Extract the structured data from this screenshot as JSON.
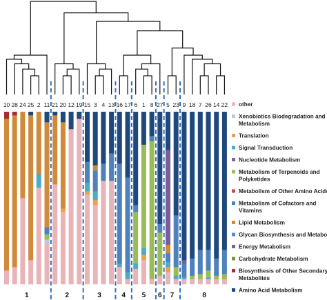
{
  "chart_data": {
    "type": "bar",
    "stacked": true,
    "title": "",
    "xlabel": "",
    "ylabel": "",
    "ylim": [
      0,
      100
    ],
    "legend_position": "right",
    "categories": [
      "10",
      "28",
      "24",
      "25",
      "2",
      "11",
      "21",
      "20",
      "12",
      "19",
      "15",
      "3",
      "4",
      "13",
      "16",
      "17",
      "6",
      "1",
      "8",
      "27",
      "5",
      "23",
      "9",
      "18",
      "7",
      "26",
      "14",
      "22"
    ],
    "groups": [
      {
        "label": "1",
        "members": [
          "10",
          "28",
          "24",
          "25",
          "2",
          "11"
        ]
      },
      {
        "label": "2",
        "members": [
          "21",
          "20",
          "12",
          "19"
        ]
      },
      {
        "label": "3",
        "members": [
          "15",
          "3",
          "4",
          "13"
        ]
      },
      {
        "label": "4",
        "members": [
          "16",
          "17"
        ]
      },
      {
        "label": "5",
        "members": [
          "6",
          "1",
          "8"
        ]
      },
      {
        "label": "6",
        "members": [
          "27"
        ]
      },
      {
        "label": "7",
        "members": [
          "5",
          "23"
        ]
      },
      {
        "label": "8",
        "members": [
          "9",
          "18",
          "7",
          "26",
          "14",
          "22"
        ]
      }
    ],
    "series": [
      {
        "name": "other",
        "color": "#e8b4b8",
        "values": [
          8,
          10,
          50,
          14,
          56,
          24,
          58,
          42,
          90,
          96,
          52,
          46,
          60,
          60,
          10,
          3,
          9,
          14,
          3,
          5,
          7,
          3,
          3,
          3,
          3,
          3,
          3,
          3
        ]
      },
      {
        "name": "Xenobiotics Biodegradation and Metabolism",
        "color": "#b7c8e4",
        "values": [
          0,
          0,
          0,
          0,
          0,
          2,
          0,
          0,
          0,
          0,
          0,
          0,
          0,
          0,
          0,
          0,
          0,
          0,
          0,
          0,
          0,
          0,
          0,
          0,
          0,
          0,
          0,
          0
        ]
      },
      {
        "name": "Translation",
        "color": "#f0a04c",
        "values": [
          0,
          0,
          0,
          0,
          0,
          0,
          0,
          2,
          0,
          0,
          2,
          3,
          0,
          0,
          0,
          0,
          0,
          3,
          0,
          0,
          3,
          0,
          0,
          0,
          0,
          0,
          0,
          0
        ]
      },
      {
        "name": "Signal Transduction",
        "color": "#4bacc6",
        "values": [
          0,
          0,
          0,
          0,
          8,
          0,
          0,
          0,
          0,
          0,
          5,
          5,
          0,
          0,
          2,
          4,
          3,
          4,
          0,
          0,
          3,
          2,
          1,
          0,
          0,
          1,
          0,
          0
        ]
      },
      {
        "name": "Nucleotide Metabolism",
        "color": "#8064a2",
        "values": [
          0,
          0,
          0,
          0,
          0,
          0,
          0,
          0,
          0,
          0,
          0,
          0,
          0,
          0,
          0,
          0,
          0,
          0,
          0,
          0,
          0,
          0,
          0,
          0,
          0,
          0,
          0,
          0
        ]
      },
      {
        "name": "Metabolism of Terpenoids and Polyketides",
        "color": "#9bbb59",
        "values": [
          0,
          0,
          0,
          0,
          0,
          3,
          0,
          0,
          0,
          0,
          0,
          0,
          0,
          0,
          0,
          0,
          30,
          60,
          80,
          25,
          0,
          5,
          0,
          2,
          3,
          4,
          2,
          3
        ]
      },
      {
        "name": "Metabolism of Other Amino Acids",
        "color": "#c0504d",
        "values": [
          0,
          0,
          0,
          0,
          0,
          0,
          0,
          0,
          0,
          0,
          0,
          0,
          0,
          0,
          0,
          0,
          0,
          0,
          0,
          0,
          0,
          0,
          0,
          0,
          0,
          0,
          0,
          0
        ]
      },
      {
        "name": "Metabolism of Cofactors and Vitamins",
        "color": "#4f81bd",
        "values": [
          0,
          0,
          0,
          0,
          0,
          4,
          0,
          0,
          0,
          0,
          12,
          12,
          10,
          16,
          58,
          55,
          4,
          0,
          3,
          5,
          5,
          30,
          8,
          10,
          14,
          12,
          10,
          14
        ]
      },
      {
        "name": "Lipid Metabolism",
        "color": "#d08a3a",
        "values": [
          88,
          88,
          50,
          84,
          36,
          61,
          40,
          50,
          0,
          0,
          0,
          3,
          0,
          0,
          0,
          0,
          0,
          0,
          0,
          0,
          5,
          0,
          0,
          0,
          0,
          0,
          0,
          0
        ]
      },
      {
        "name": "Glycan Biosynthesis and Metabolism",
        "color": "#548dd4",
        "values": [
          0,
          0,
          0,
          0,
          0,
          0,
          0,
          0,
          0,
          0,
          0,
          0,
          0,
          0,
          0,
          0,
          0,
          0,
          0,
          0,
          0,
          0,
          0,
          0,
          0,
          0,
          0,
          0
        ]
      },
      {
        "name": "Energy Metabolism",
        "color": "#7a5c9a",
        "values": [
          0,
          0,
          0,
          0,
          0,
          0,
          0,
          0,
          0,
          0,
          0,
          0,
          0,
          0,
          0,
          0,
          0,
          0,
          0,
          0,
          55,
          0,
          2,
          0,
          0,
          0,
          0,
          0
        ]
      },
      {
        "name": "Carbohydrate Metabolism",
        "color": "#77933c",
        "values": [
          0,
          0,
          0,
          0,
          0,
          0,
          0,
          0,
          0,
          0,
          0,
          0,
          0,
          0,
          0,
          0,
          0,
          0,
          0,
          0,
          0,
          0,
          0,
          0,
          0,
          0,
          0,
          0
        ]
      },
      {
        "name": "Biosynthesis of Other Secondary Metabolites",
        "color": "#a32f34",
        "values": [
          4,
          2,
          0,
          0,
          0,
          0,
          0,
          0,
          0,
          0,
          0,
          0,
          0,
          0,
          0,
          0,
          0,
          0,
          0,
          0,
          0,
          0,
          0,
          0,
          0,
          0,
          0,
          0
        ]
      },
      {
        "name": "Amino Acid Metabolism",
        "color": "#1f497d",
        "values": [
          0,
          0,
          0,
          2,
          0,
          6,
          2,
          6,
          10,
          4,
          29,
          31,
          30,
          24,
          30,
          38,
          54,
          19,
          14,
          65,
          22,
          60,
          86,
          85,
          80,
          80,
          85,
          80
        ]
      }
    ],
    "legend_order": [
      "other",
      "Xenobiotics Biodegradation and Metabolism",
      "Translation",
      "Signal Transduction",
      "Nucleotide Metabolism",
      "Metabolism of Terpenoids and Polyketides",
      "Metabolism of Other Amino Acids",
      "Metabolism of Cofactors and Vitamins",
      "Lipid Metabolism",
      "Glycan Biosynthesis and Metabolism",
      "Energy Metabolism",
      "Carbohydrate Metabolism",
      "Biosynthesis of Other Secondary Metabolites",
      "Amino Acid Metabolism"
    ],
    "legend_text": [
      [
        "other"
      ],
      [
        "Xenobiotics Biodegradation and",
        "Metabolism"
      ],
      [
        "Translation"
      ],
      [
        "Signal Transduction"
      ],
      [
        "Nucleotide Metabolism"
      ],
      [
        "Metabolism of Terpenoids and",
        "Polyketides"
      ],
      [
        "Metabolism of Other Amino Acids"
      ],
      [
        "Metabolism of Cofactors and",
        "Vitamins"
      ],
      [
        "Lipid Metabolism"
      ],
      [
        "Glycan Biosynthesis and Metabolism"
      ],
      [
        "Energy Metabolism"
      ],
      [
        "Carbohydrate Metabolism"
      ],
      [
        "Biosynthesis of Other Secondary",
        "Metabolites"
      ],
      [
        "Amino Acid Metabolism"
      ]
    ],
    "dendrogram_merges": [
      [
        "25",
        "2"
      ],
      [
        "24",
        "c0"
      ],
      [
        "28",
        "c1"
      ],
      [
        "10",
        "c2"
      ],
      [
        "c3",
        "11"
      ],
      [
        "20",
        "12"
      ],
      [
        "c5",
        "19"
      ],
      [
        "21",
        "c6"
      ],
      [
        "3",
        "4"
      ],
      [
        "c8",
        "13"
      ],
      [
        "15",
        "c9"
      ],
      [
        "16",
        "17"
      ],
      [
        "1",
        "8"
      ],
      [
        "6",
        "c12"
      ],
      [
        "5",
        "23"
      ],
      [
        "c13",
        "27"
      ],
      [
        "c11",
        "c15"
      ],
      [
        "7",
        "26"
      ],
      [
        "14",
        "22"
      ],
      [
        "c17",
        "c18"
      ],
      [
        "18",
        "c19"
      ],
      [
        "9",
        "c20"
      ],
      [
        "c14",
        "c21"
      ],
      [
        "c16",
        "c22"
      ],
      [
        "c10",
        "c23"
      ],
      [
        "c7",
        "c24"
      ],
      [
        "c4",
        "c25"
      ]
    ]
  }
}
